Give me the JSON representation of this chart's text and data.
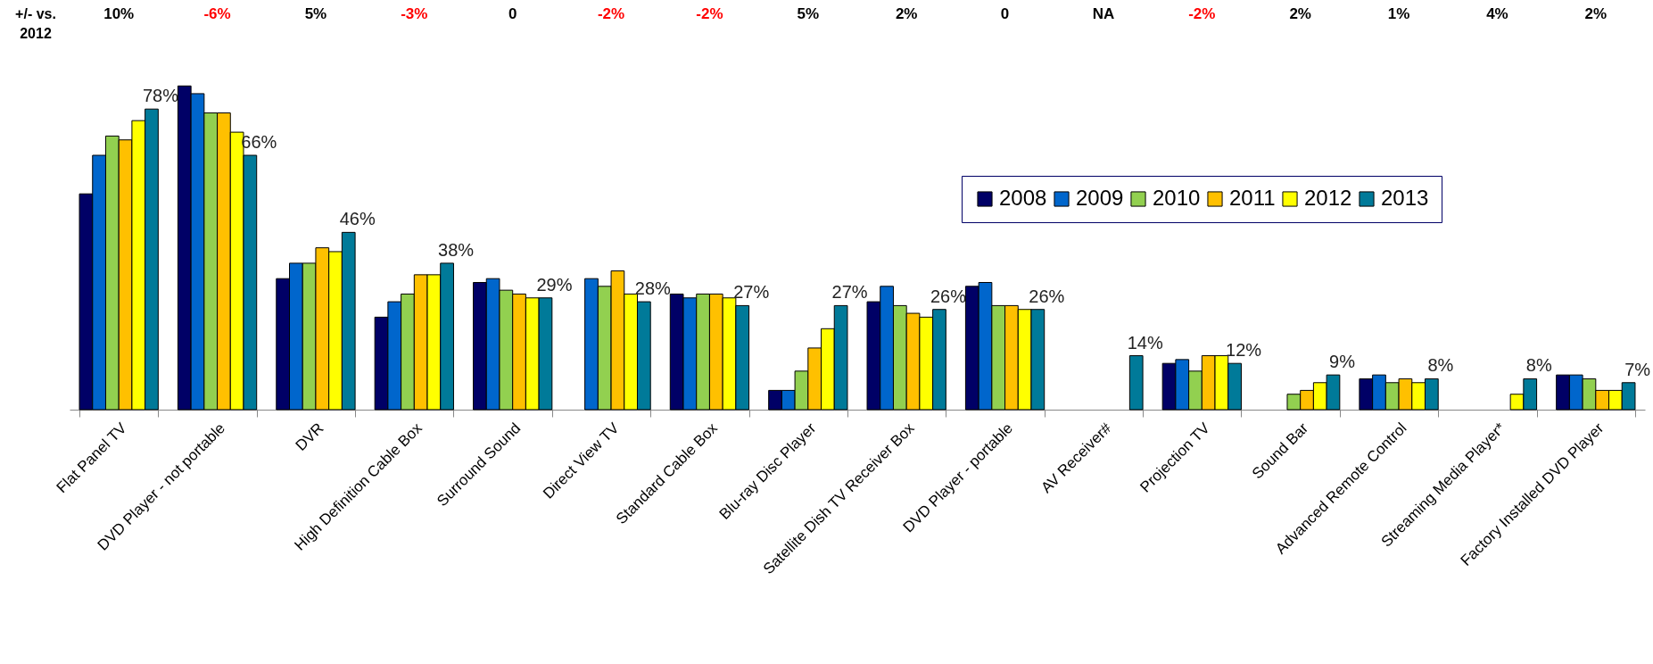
{
  "chart_data": {
    "type": "bar",
    "categories": [
      "Flat Panel TV",
      "DVD Player - not portable",
      "DVR",
      "High Definition Cable Box",
      "Surround Sound",
      "Direct View TV",
      "Standard Cable Box",
      "Blu-ray Disc Player",
      "Satellite Dish TV Receiver Box",
      "DVD Player - portable",
      "AV Receiver#",
      "Projection TV",
      "Sound Bar",
      "Advanced Remote Control",
      "Streaming Media Player*",
      "Factory Installed DVD Player"
    ],
    "series": [
      {
        "name": "2008",
        "color": "#000066",
        "values": [
          56,
          84,
          34,
          24,
          33,
          null,
          30,
          5,
          28,
          32,
          null,
          12,
          null,
          8,
          null,
          9
        ]
      },
      {
        "name": "2009",
        "color": "#0066cc",
        "values": [
          66,
          82,
          38,
          28,
          34,
          34,
          29,
          5,
          32,
          33,
          null,
          13,
          null,
          9,
          null,
          9
        ]
      },
      {
        "name": "2010",
        "color": "#92d050",
        "values": [
          71,
          77,
          38,
          30,
          31,
          32,
          30,
          10,
          27,
          27,
          null,
          10,
          4,
          7,
          null,
          8
        ]
      },
      {
        "name": "2011",
        "color": "#ffc000",
        "values": [
          70,
          77,
          42,
          35,
          30,
          36,
          30,
          16,
          25,
          27,
          null,
          14,
          5,
          8,
          null,
          5
        ]
      },
      {
        "name": "2012",
        "color": "#ffff00",
        "values": [
          75,
          72,
          41,
          35,
          29,
          30,
          29,
          21,
          24,
          26,
          null,
          14,
          7,
          7,
          4,
          5
        ]
      },
      {
        "name": "2013",
        "color": "#007a99",
        "values": [
          78,
          66,
          46,
          38,
          29,
          28,
          27,
          27,
          26,
          26,
          14,
          12,
          9,
          8,
          8,
          7
        ],
        "value_labels": [
          "78%",
          "66%",
          "46%",
          "38%",
          "29%",
          "28%",
          "27%",
          "27%",
          "26%",
          "26%",
          "14%",
          "12%",
          "9%",
          "8%",
          "8%",
          "7%"
        ]
      }
    ],
    "annotations": [
      "+/- vs.\n2012",
      "10%",
      "-6%",
      "5%",
      "-3%",
      "0",
      "-2%",
      "-2%",
      "5%",
      "2%",
      "0",
      "NA",
      "-2%",
      "2%",
      "1%",
      "4%",
      "2%"
    ],
    "legend": "right",
    "grid": false
  }
}
